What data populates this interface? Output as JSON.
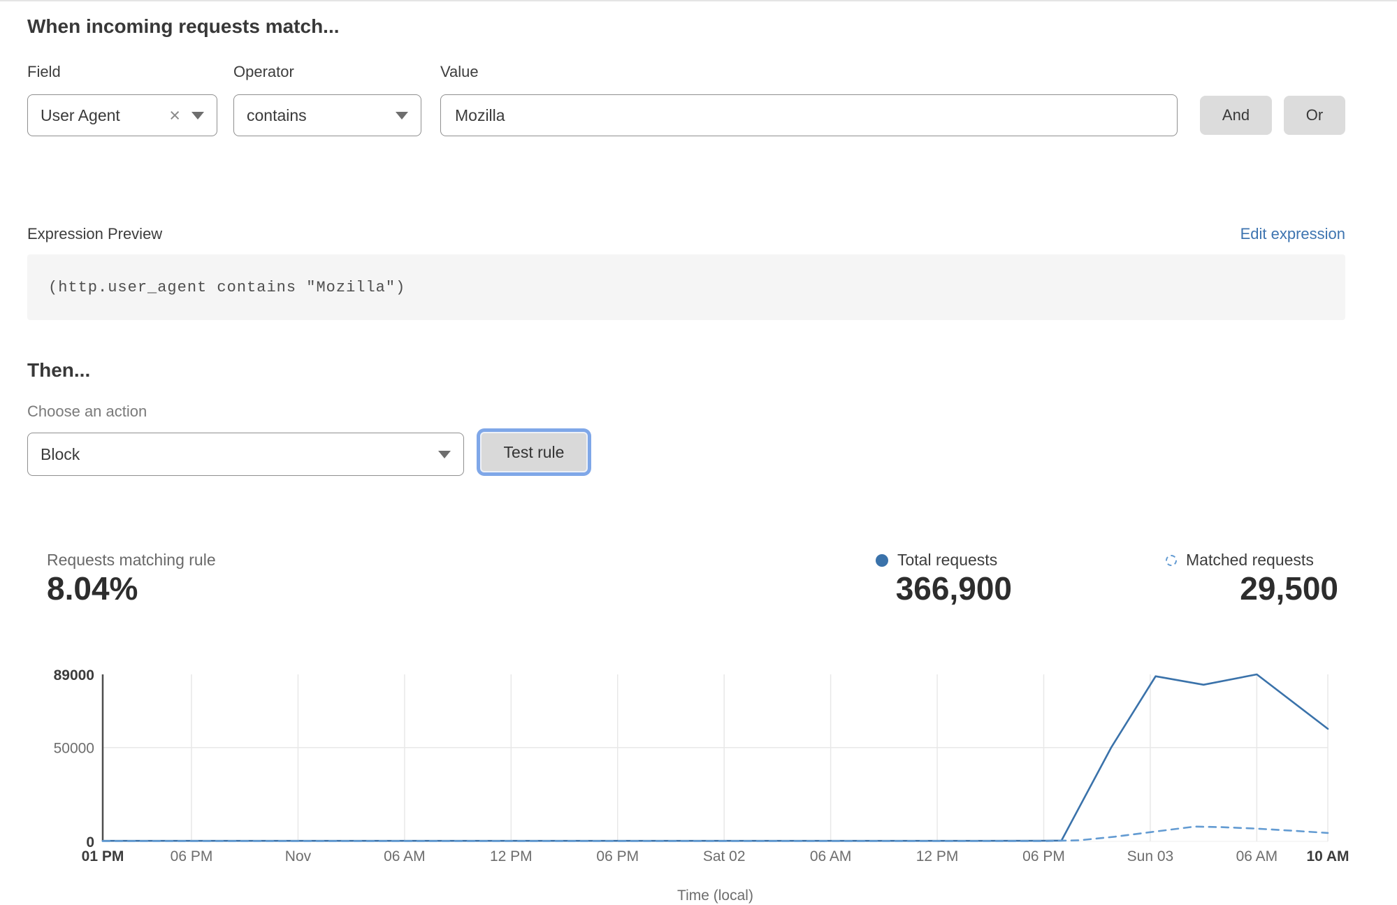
{
  "match_section": {
    "heading": "When incoming requests match...",
    "field_label": "Field",
    "operator_label": "Operator",
    "value_label": "Value",
    "field_value": "User Agent",
    "operator_value": "contains",
    "value_value": "Mozilla",
    "and_label": "And",
    "or_label": "Or"
  },
  "expression": {
    "label": "Expression Preview",
    "edit_link": "Edit expression",
    "code": "(http.user_agent contains \"Mozilla\")"
  },
  "action_section": {
    "heading": "Then...",
    "choose_label": "Choose an action",
    "action_value": "Block",
    "test_button_label": "Test rule"
  },
  "stats": {
    "matching_label": "Requests matching rule",
    "matching_value": "8.04%",
    "total_label": "Total requests",
    "total_value": "366,900",
    "matched_label": "Matched requests",
    "matched_value": "29,500"
  },
  "colors": {
    "link_blue": "#3d74b0",
    "focus_ring_blue": "#7fa7e8",
    "button_gray": "#dcdcdc",
    "total_series_blue": "#3a72aa",
    "matched_series_blue": "#639bd2"
  },
  "chart_data": {
    "type": "line",
    "title": "",
    "xlabel": "Time (local)",
    "ylabel": "",
    "ylim": [
      0,
      89000
    ],
    "grid": "vertical-per-tick plus horizontal at 50000",
    "legend_position": "top-right above chart (in stats row)",
    "x_domain_hours": [
      13,
      82
    ],
    "yticks": [
      {
        "label": "89000",
        "value": 89000,
        "bold": true
      },
      {
        "label": "50000",
        "value": 50000,
        "bold": false
      },
      {
        "label": "0",
        "value": 0,
        "bold": true
      }
    ],
    "xticks": [
      {
        "label": "01 PM",
        "t": 13,
        "bold": true
      },
      {
        "label": "06 PM",
        "t": 18,
        "bold": false
      },
      {
        "label": "Nov",
        "t": 24,
        "bold": false
      },
      {
        "label": "06 AM",
        "t": 30,
        "bold": false
      },
      {
        "label": "12 PM",
        "t": 36,
        "bold": false
      },
      {
        "label": "06 PM",
        "t": 42,
        "bold": false
      },
      {
        "label": "Sat 02",
        "t": 48,
        "bold": false
      },
      {
        "label": "06 AM",
        "t": 54,
        "bold": false
      },
      {
        "label": "12 PM",
        "t": 60,
        "bold": false
      },
      {
        "label": "06 PM",
        "t": 66,
        "bold": false
      },
      {
        "label": "Sun 03",
        "t": 72,
        "bold": false
      },
      {
        "label": "06 AM",
        "t": 78,
        "bold": false
      },
      {
        "label": "10 AM",
        "t": 82,
        "bold": true
      }
    ],
    "series": [
      {
        "name": "Total requests",
        "style": "solid",
        "color": "#3a72aa",
        "points": [
          [
            13,
            300
          ],
          [
            18,
            300
          ],
          [
            24,
            300
          ],
          [
            30,
            300
          ],
          [
            36,
            300
          ],
          [
            42,
            300
          ],
          [
            48,
            300
          ],
          [
            54,
            300
          ],
          [
            60,
            300
          ],
          [
            66,
            350
          ],
          [
            67,
            450
          ],
          [
            69.8,
            50000
          ],
          [
            72.3,
            88000
          ],
          [
            75,
            83500
          ],
          [
            78,
            89000
          ],
          [
            82,
            60000
          ]
        ]
      },
      {
        "name": "Matched requests",
        "style": "dashed",
        "color": "#639bd2",
        "points": [
          [
            13,
            150
          ],
          [
            18,
            150
          ],
          [
            24,
            150
          ],
          [
            30,
            150
          ],
          [
            36,
            150
          ],
          [
            42,
            150
          ],
          [
            48,
            150
          ],
          [
            54,
            150
          ],
          [
            60,
            150
          ],
          [
            66,
            150
          ],
          [
            68,
            600
          ],
          [
            70,
            2500
          ],
          [
            72,
            4900
          ],
          [
            74.5,
            7900
          ],
          [
            76,
            7600
          ],
          [
            78,
            6800
          ],
          [
            80,
            5700
          ],
          [
            82,
            4500
          ]
        ]
      }
    ]
  }
}
